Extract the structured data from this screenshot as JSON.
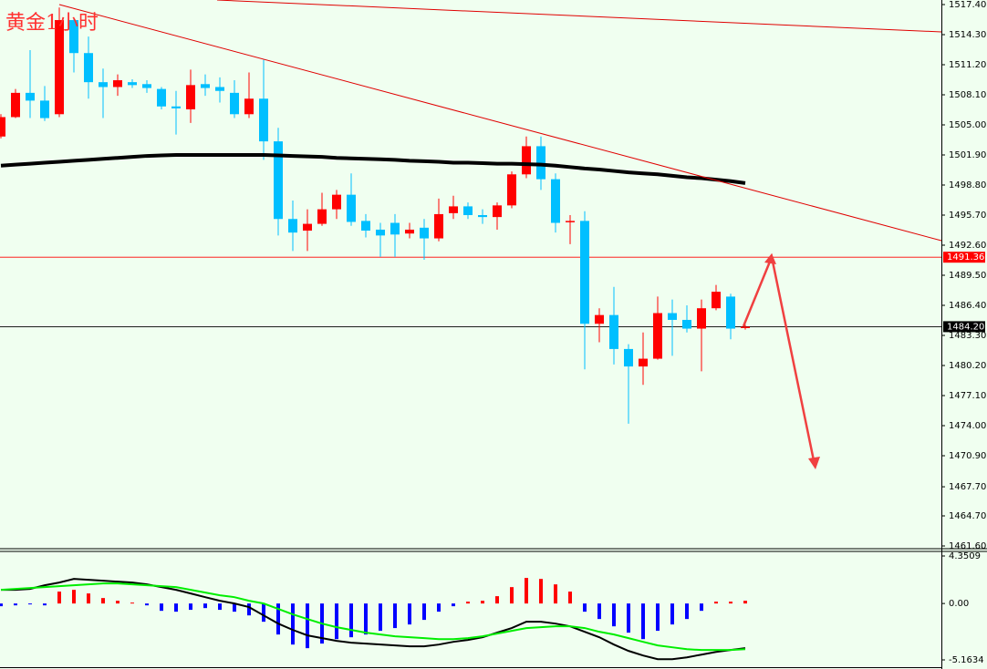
{
  "chart_data": {
    "type": "candlestick",
    "title": "黄金1小时",
    "open": [
      1503.8,
      1505.8,
      1508.3,
      1507.5,
      1506.1,
      1515.8,
      1512.4,
      1509.4,
      1508.9,
      1509.4,
      1509.2,
      1508.7,
      1506.9,
      1506.6,
      1509.2,
      1508.9,
      1508.3,
      1506.1,
      1507.7,
      1503.3,
      1495.3,
      1494.1,
      1494.8,
      1496.3,
      1497.8,
      1495.1,
      1494.2,
      1494.9,
      1493.8,
      1494.4,
      1493.3,
      1495.9,
      1496.6,
      1495.7,
      1495.5,
      1496.7,
      1499.9,
      1502.8,
      1499.4,
      1495.0,
      1495.1,
      1484.5,
      1485.4,
      1481.9,
      1480.1,
      1480.9,
      1485.6,
      1484.9,
      1484.0,
      1486.1,
      1487.3,
      1484.1
    ],
    "high": [
      1506.1,
      1508.7,
      1512.7,
      1509.0,
      1517.1,
      1516.0,
      1514.1,
      1510.8,
      1510.2,
      1509.7,
      1509.6,
      1508.9,
      1508.5,
      1510.7,
      1510.2,
      1509.9,
      1509.6,
      1510.4,
      1511.7,
      1504.7,
      1497.2,
      1496.3,
      1498.0,
      1498.3,
      1500.0,
      1495.8,
      1494.9,
      1495.8,
      1494.9,
      1495.3,
      1497.4,
      1497.7,
      1497.0,
      1496.3,
      1497.0,
      1500.2,
      1503.8,
      1503.8,
      1500.0,
      1495.7,
      1496.1,
      1486.1,
      1488.3,
      1482.4,
      1483.6,
      1487.3,
      1487.0,
      1486.4,
      1487.0,
      1488.5,
      1487.6,
      1484.4
    ],
    "low": [
      1503.6,
      1505.7,
      1505.7,
      1505.4,
      1505.8,
      1510.4,
      1507.7,
      1505.7,
      1508.0,
      1508.8,
      1508.3,
      1506.6,
      1504.0,
      1505.2,
      1508.0,
      1507.3,
      1505.7,
      1505.7,
      1501.4,
      1493.6,
      1492.0,
      1492.0,
      1494.6,
      1495.3,
      1494.6,
      1493.4,
      1491.4,
      1491.4,
      1493.3,
      1491.1,
      1493.0,
      1495.3,
      1495.3,
      1494.8,
      1494.2,
      1496.4,
      1499.5,
      1498.3,
      1493.9,
      1492.7,
      1479.8,
      1482.6,
      1480.3,
      1474.2,
      1478.2,
      1480.8,
      1481.2,
      1483.6,
      1479.6,
      1485.9,
      1482.9,
      1483.9
    ],
    "close": [
      1505.8,
      1508.3,
      1507.5,
      1505.7,
      1515.8,
      1512.4,
      1509.4,
      1508.9,
      1509.6,
      1509.1,
      1508.8,
      1506.9,
      1506.7,
      1509.1,
      1508.8,
      1508.5,
      1506.1,
      1507.7,
      1503.3,
      1495.3,
      1493.9,
      1494.8,
      1496.3,
      1497.8,
      1495.0,
      1494.1,
      1493.6,
      1493.7,
      1494.2,
      1493.3,
      1495.8,
      1496.6,
      1495.7,
      1495.5,
      1496.7,
      1499.9,
      1502.8,
      1499.4,
      1494.9,
      1495.1,
      1484.5,
      1485.4,
      1481.9,
      1480.1,
      1480.9,
      1485.6,
      1484.9,
      1484.0,
      1486.1,
      1487.8,
      1484.0,
      1484.2
    ],
    "up_color": "#ff0000",
    "down_color": "#00bfff",
    "moving_average": {
      "color": "#000000",
      "values": [
        1500.8,
        1500.9,
        1501.0,
        1501.1,
        1501.2,
        1501.3,
        1501.4,
        1501.5,
        1501.6,
        1501.7,
        1501.8,
        1501.85,
        1501.9,
        1501.9,
        1501.9,
        1501.9,
        1501.9,
        1501.9,
        1501.9,
        1501.85,
        1501.8,
        1501.75,
        1501.7,
        1501.6,
        1501.55,
        1501.5,
        1501.45,
        1501.4,
        1501.3,
        1501.25,
        1501.2,
        1501.1,
        1501.1,
        1501.05,
        1501.0,
        1501.0,
        1500.95,
        1500.9,
        1500.8,
        1500.65,
        1500.5,
        1500.4,
        1500.25,
        1500.1,
        1500.0,
        1499.9,
        1499.75,
        1499.6,
        1499.5,
        1499.35,
        1499.2,
        1499.0
      ]
    },
    "price_lines": [
      {
        "value": 1491.36,
        "label": "1491.36",
        "color": "#ff0000"
      },
      {
        "value": 1484.2,
        "label": "1484.20",
        "color": "#000000"
      }
    ],
    "ylim": [
      1461.6,
      1517.4
    ],
    "yticks": [
      {
        "value": 1517.4,
        "label": "1517.40"
      },
      {
        "value": 1514.3,
        "label": "1514.30"
      },
      {
        "value": 1511.2,
        "label": "1511.20"
      },
      {
        "value": 1508.1,
        "label": "1508.10"
      },
      {
        "value": 1505.0,
        "label": "1505.00"
      },
      {
        "value": 1501.9,
        "label": "1501.90"
      },
      {
        "value": 1498.8,
        "label": "1498.80"
      },
      {
        "value": 1495.7,
        "label": "1495.70"
      },
      {
        "value": 1492.6,
        "label": "1492.60"
      },
      {
        "value": 1489.5,
        "label": "1489.50"
      },
      {
        "value": 1486.4,
        "label": "1486.40"
      },
      {
        "value": 1483.3,
        "label": "1483.30"
      },
      {
        "value": 1480.2,
        "label": "1480.20"
      },
      {
        "value": 1477.1,
        "label": "1477.10"
      },
      {
        "value": 1474.0,
        "label": "1474.00"
      },
      {
        "value": 1470.9,
        "label": "1470.90"
      },
      {
        "value": 1467.7,
        "label": "1467.70"
      },
      {
        "value": 1464.7,
        "label": "1464.70"
      },
      {
        "value": 1461.6,
        "label": "1461.60"
      }
    ],
    "macd": {
      "histogram": [
        -0.25,
        -0.17,
        -0.08,
        -0.17,
        1.09,
        1.25,
        0.92,
        0.5,
        0.25,
        0.08,
        -0.17,
        -0.67,
        -0.75,
        -0.58,
        -0.42,
        -0.58,
        -0.75,
        -1.09,
        -1.67,
        -2.84,
        -3.76,
        -4.09,
        -3.67,
        -3.26,
        -3.09,
        -2.84,
        -2.5,
        -2.25,
        -1.92,
        -1.5,
        -0.75,
        -0.25,
        0.17,
        0.25,
        0.67,
        1.5,
        2.34,
        2.25,
        1.75,
        1.09,
        -0.75,
        -1.42,
        -2.09,
        -2.67,
        -3.26,
        -2.5,
        -1.92,
        -1.42,
        -0.67,
        0.17,
        0.17,
        0.25
      ],
      "positive_color": "#ff0000",
      "negative_color": "#0000ff",
      "series": [
        {
          "color": "#000000",
          "values": [
            1.25,
            1.25,
            1.34,
            1.67,
            1.92,
            2.25,
            2.17,
            2.09,
            2.0,
            1.92,
            1.75,
            1.5,
            1.25,
            0.92,
            0.58,
            0.25,
            0,
            -0.33,
            -1.09,
            -1.84,
            -2.42,
            -2.92,
            -3.17,
            -3.42,
            -3.59,
            -3.67,
            -3.76,
            -3.84,
            -3.92,
            -3.92,
            -3.76,
            -3.51,
            -3.34,
            -3.09,
            -2.67,
            -2.25,
            -1.67,
            -1.67,
            -1.84,
            -2.09,
            -2.59,
            -3.09,
            -3.76,
            -4.34,
            -4.76,
            -5.1,
            -5.1,
            -4.93,
            -4.68,
            -4.43,
            -4.26,
            -4.09
          ]
        },
        {
          "color": "#00ee00",
          "values": [
            1.25,
            1.34,
            1.42,
            1.5,
            1.59,
            1.67,
            1.75,
            1.84,
            1.84,
            1.75,
            1.67,
            1.59,
            1.5,
            1.25,
            1.0,
            0.75,
            0.58,
            0.25,
            0,
            -0.5,
            -1.0,
            -1.42,
            -1.84,
            -2.17,
            -2.42,
            -2.67,
            -2.84,
            -3.0,
            -3.09,
            -3.17,
            -3.26,
            -3.26,
            -3.17,
            -3.0,
            -2.75,
            -2.5,
            -2.25,
            -2.17,
            -2.09,
            -2.09,
            -2.25,
            -2.59,
            -2.84,
            -3.17,
            -3.51,
            -3.84,
            -4.01,
            -4.18,
            -4.26,
            -4.26,
            -4.26,
            -4.18
          ]
        }
      ],
      "ylim": [
        -5.1634,
        4.3509
      ],
      "yticks": [
        {
          "value": 4.3509,
          "label": "4.3509"
        },
        {
          "value": 0,
          "label": "0.00"
        },
        {
          "value": -5.1634,
          "label": "-5.1634"
        }
      ]
    }
  }
}
